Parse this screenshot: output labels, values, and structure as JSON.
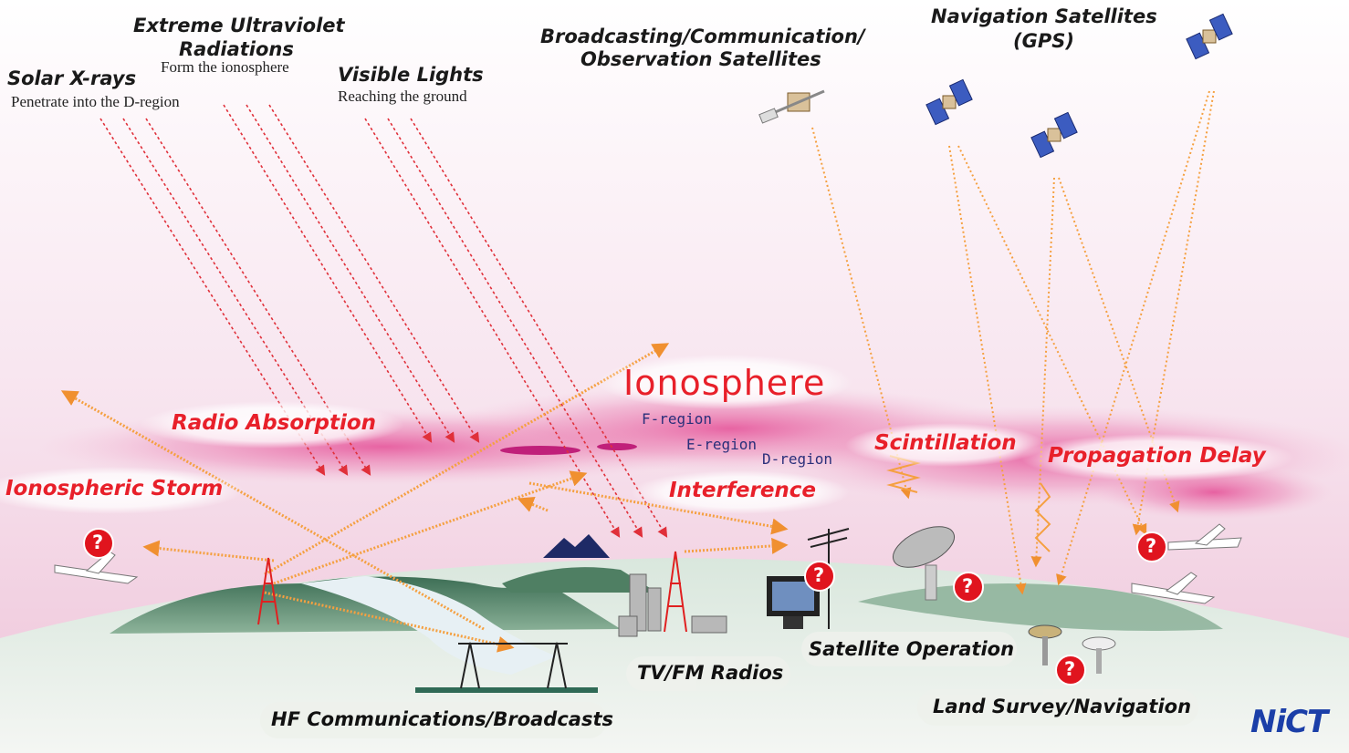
{
  "sources": {
    "xrays": {
      "title": "Solar X-rays",
      "sub": "Penetrate into the D-region"
    },
    "euv": {
      "title_line1": "Extreme Ultraviolet",
      "title_line2": "Radiations",
      "sub": "Form the ionosphere"
    },
    "visible": {
      "title": "Visible Lights",
      "sub": "Reaching the ground"
    }
  },
  "satellites": {
    "broadcast_line1": "Broadcasting/Communication/",
    "broadcast_line2": "Observation Satellites",
    "nav_line1": "Navigation Satellites",
    "nav_line2": "(GPS)"
  },
  "ionosphere": {
    "title": "Ionosphere",
    "f_region": "F-region",
    "e_region": "E-region",
    "d_region": "D-region"
  },
  "effects": {
    "radio_absorption": "Radio Absorption",
    "ionospheric_storm": "Ionospheric Storm",
    "interference": "Interference",
    "scintillation": "Scintillation",
    "propagation_delay": "Propagation Delay"
  },
  "uses": {
    "hf": "HF Communications/Broadcasts",
    "tv": "TV/FM Radios",
    "satellite_op": "Satellite Operation",
    "land_survey": "Land Survey/Navigation"
  },
  "alert_mark": "?",
  "logo": "NiCT",
  "colors": {
    "effect_red": "#e8202a",
    "ray_red": "#e0303a",
    "wave_orange": "#f5a040",
    "ionosphere_pink": "#e23a8a",
    "ground_green": "#5f8c6a",
    "logo_blue": "#1b3fa8",
    "sky_top": "#ffffff",
    "sky_bottom": "#f1c8dc"
  }
}
